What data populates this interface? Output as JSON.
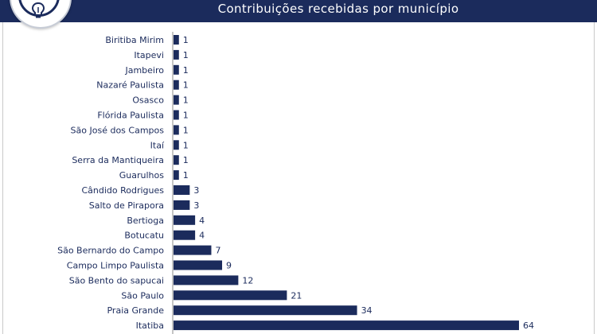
{
  "header": {
    "title": "Contribuições recebidas por município",
    "logo_icon": "lightbulb-icon"
  },
  "colors": {
    "header_bg": "#1b2b5c",
    "bar": "#1b2b5c",
    "label": "#1b2b5c"
  },
  "chart_data": {
    "type": "bar",
    "orientation": "horizontal",
    "title": "Contribuições recebidas por município",
    "categories": [
      "Biritiba Mirim",
      "Itapevi",
      "Jambeiro",
      "Nazaré Paulista",
      "Osasco",
      "Flórida Paulista",
      "São José dos Campos",
      "Itaí",
      "Serra da Mantiqueira",
      "Guarulhos",
      "Cândido Rodrigues",
      "Salto de Pirapora",
      "Bertioga",
      "Botucatu",
      "São Bernardo do Campo",
      "Campo Limpo Paulista",
      "São Bento do sapucai",
      "São Paulo",
      "Praia Grande",
      "Itatiba"
    ],
    "values": [
      1,
      1,
      1,
      1,
      1,
      1,
      1,
      1,
      1,
      1,
      3,
      3,
      4,
      4,
      7,
      9,
      12,
      21,
      34,
      64
    ],
    "xlim": [
      0,
      64
    ],
    "grid": false,
    "legend": "none",
    "data_labels": true
  }
}
